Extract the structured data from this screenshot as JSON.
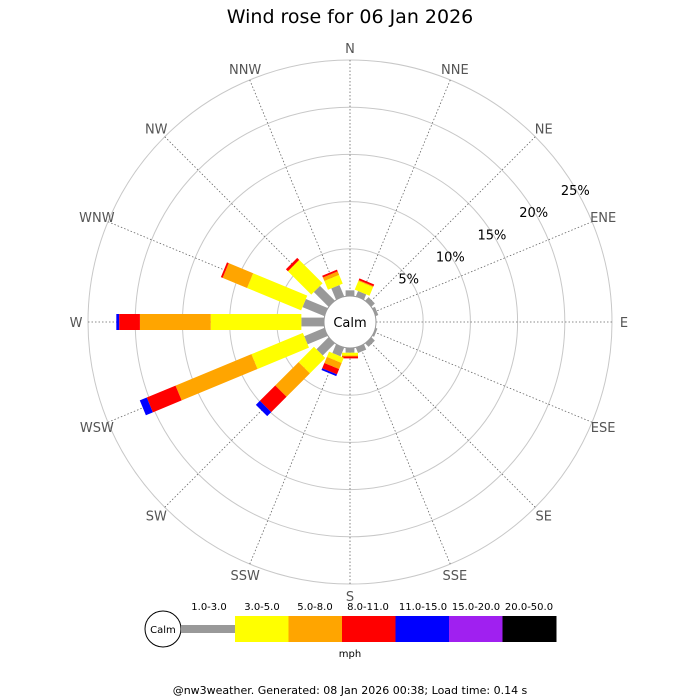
{
  "title": "Wind rose for 06 Jan 2026",
  "footer": "@nw3weather. Generated: 08 Jan 2026 00:38; Load time: 0.14 s",
  "calm_label": "Calm",
  "chart_data": {
    "type": "wind-rose",
    "title": "Wind rose for 06 Jan 2026",
    "directions": [
      "N",
      "NNE",
      "NE",
      "ENE",
      "E",
      "ESE",
      "SE",
      "SSE",
      "S",
      "SSW",
      "SW",
      "WSW",
      "W",
      "WNW",
      "NW",
      "NNW"
    ],
    "radial_ticks": [
      5,
      10,
      15,
      20,
      25
    ],
    "radial_tick_labels": [
      "5%",
      "10%",
      "15%",
      "20%",
      "25%"
    ],
    "radial_max": 25,
    "unit": "mph",
    "speed_bins": [
      {
        "label": "",
        "color": "#999999"
      },
      {
        "label": "1.0-3.0",
        "color": "#ffff00"
      },
      {
        "label": "3.0-5.0",
        "color": "#ffa500"
      },
      {
        "label": "5.0-8.0",
        "color": "#ff0000"
      },
      {
        "label": "8.0-11.0",
        "color": "#0000ff"
      },
      {
        "label": "11.0-15.0",
        "color": "#a020f0"
      },
      {
        "label": "15.0-20.0",
        "color": "#000000"
      },
      {
        "label": "20.0-50.0",
        "color": "#ffffff"
      }
    ],
    "stacks": {
      "N": [
        0.6,
        0,
        0,
        0,
        0,
        0,
        0
      ],
      "NNE": [
        0.6,
        1.0,
        0.1,
        0.2,
        0,
        0,
        0
      ],
      "NE": [
        0.5,
        0,
        0,
        0,
        0,
        0,
        0
      ],
      "ENE": [
        0.3,
        0,
        0,
        0,
        0,
        0,
        0
      ],
      "E": [
        0,
        0,
        0,
        0,
        0,
        0,
        0
      ],
      "ESE": [
        0.2,
        0,
        0,
        0,
        0,
        0,
        0
      ],
      "SE": [
        0.5,
        0,
        0,
        0,
        0,
        0,
        0
      ],
      "SSE": [
        0.6,
        0,
        0,
        0,
        0,
        0,
        0
      ],
      "S": [
        0.5,
        0.3,
        0.1,
        0.2,
        0,
        0,
        0
      ],
      "SSW": [
        1.0,
        0.6,
        0.7,
        0.6,
        0.2,
        0,
        0
      ],
      "SW": [
        1.8,
        2.3,
        3.5,
        2.3,
        0.6,
        0,
        0
      ],
      "WSW": [
        2.3,
        5.9,
        8.7,
        3.3,
        0.8,
        0,
        0
      ],
      "W": [
        2.4,
        9.6,
        7.5,
        2.2,
        0.3,
        0,
        0
      ],
      "WNW": [
        2.5,
        6.2,
        2.8,
        0.2,
        0,
        0,
        0
      ],
      "NW": [
        2.2,
        3.5,
        0,
        0.3,
        0,
        0,
        0
      ],
      "NNW": [
        1.3,
        1.0,
        0.4,
        0.2,
        0,
        0,
        0
      ]
    },
    "grid": true
  }
}
